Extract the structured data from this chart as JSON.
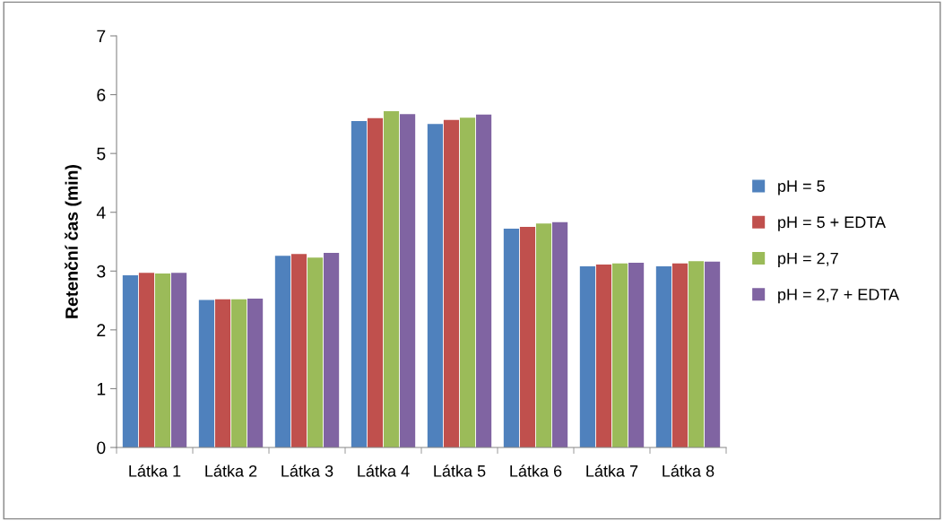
{
  "chart_data": {
    "type": "bar",
    "ylabel": "Retenční čas (min)",
    "categories": [
      "Látka 1",
      "Látka 2",
      "Látka 3",
      "Látka 4",
      "Látka 5",
      "Látka 6",
      "Látka 7",
      "Látka 8"
    ],
    "series": [
      {
        "name": "pH = 5",
        "color": "#4f81bd",
        "values": [
          2.93,
          2.51,
          3.26,
          5.55,
          5.5,
          3.72,
          3.08,
          3.08
        ]
      },
      {
        "name": "pH = 5 + EDTA",
        "color": "#c0504d",
        "values": [
          2.97,
          2.52,
          3.29,
          5.6,
          5.57,
          3.75,
          3.11,
          3.13
        ]
      },
      {
        "name": "pH = 2,7",
        "color": "#9bbb59",
        "values": [
          2.96,
          2.52,
          3.23,
          5.72,
          5.61,
          3.81,
          3.13,
          3.17
        ]
      },
      {
        "name": "pH = 2,7 + EDTA",
        "color": "#8064a2",
        "values": [
          2.97,
          2.53,
          3.31,
          5.67,
          5.66,
          3.83,
          3.14,
          3.16
        ]
      }
    ],
    "ylim": [
      0,
      7
    ],
    "yticks": [
      0,
      1,
      2,
      3,
      4,
      5,
      6,
      7
    ],
    "grid": false,
    "legend": "right"
  }
}
